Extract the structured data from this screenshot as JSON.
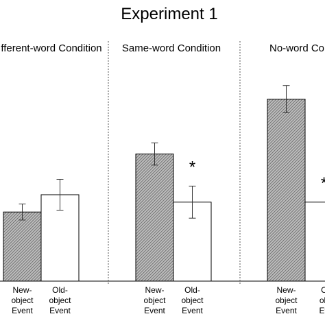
{
  "chart_data": {
    "type": "bar",
    "title": "Experiment 1",
    "xlabel": "",
    "ylabel": "",
    "grid": false,
    "legend": "none",
    "colors": {
      "new_object_fill": "hatched-gray",
      "old_object_fill": "#ffffff",
      "stroke": "#000000",
      "divider": "#555555"
    },
    "value_range": [
      0,
      300
    ],
    "panels": [
      {
        "name": "fferent-word Condition",
        "categories": [
          "New-\nobject\nEvent",
          "Old-\nobject\nEvent"
        ],
        "values": [
          112,
          140
        ],
        "errors": [
          13,
          25
        ],
        "significance": [
          "",
          ""
        ]
      },
      {
        "name": "Same-word Condition",
        "categories": [
          "New-\nobject\nEvent",
          "Old-\nobject\nEvent"
        ],
        "values": [
          206,
          128
        ],
        "errors": [
          18,
          26
        ],
        "significance": [
          "",
          "*"
        ]
      },
      {
        "name": "No-word Co",
        "categories": [
          "New-\nobject\nEvent",
          "C\nob\nEv"
        ],
        "values": [
          295,
          128
        ],
        "errors": [
          22,
          0
        ],
        "significance": [
          "",
          "*"
        ]
      }
    ]
  }
}
